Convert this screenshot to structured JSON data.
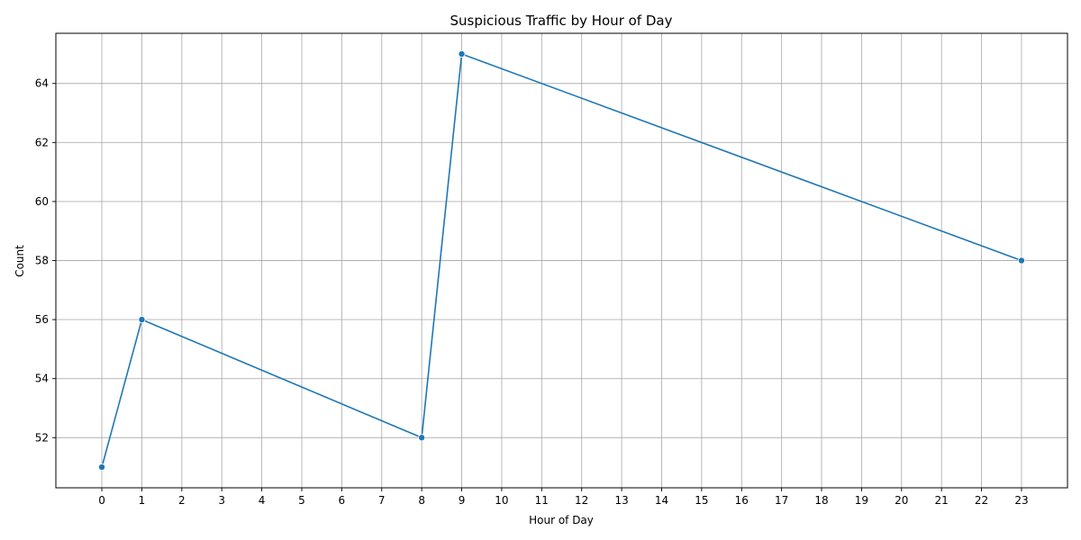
{
  "chart_data": {
    "type": "line",
    "title": "Suspicious Traffic by Hour of Day",
    "xlabel": "Hour of Day",
    "ylabel": "Count",
    "x_ticks": [
      0,
      1,
      2,
      3,
      4,
      5,
      6,
      7,
      8,
      9,
      10,
      11,
      12,
      13,
      14,
      15,
      16,
      17,
      18,
      19,
      20,
      21,
      22,
      23
    ],
    "y_ticks": [
      52,
      54,
      56,
      58,
      60,
      62,
      64
    ],
    "xlim": [
      -1.15,
      24.15
    ],
    "ylim": [
      50.3,
      65.7
    ],
    "grid": true,
    "series": [
      {
        "x": [
          0,
          1,
          8,
          9,
          23
        ],
        "y": [
          51,
          56,
          52,
          65,
          58
        ],
        "color": "#1f77b4",
        "marker": "circle"
      }
    ]
  }
}
